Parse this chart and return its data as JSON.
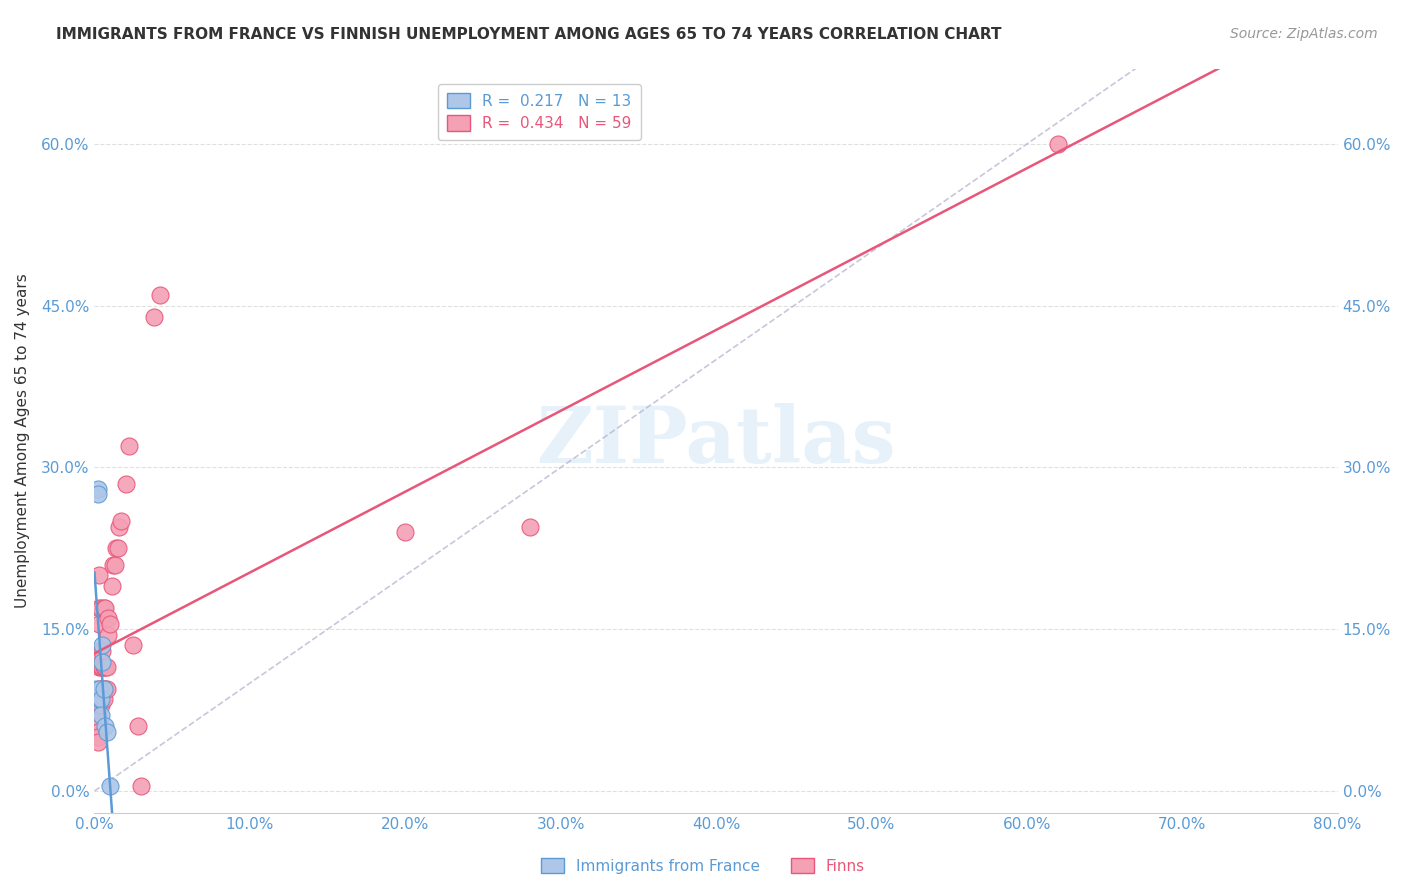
{
  "title": "IMMIGRANTS FROM FRANCE VS FINNISH UNEMPLOYMENT AMONG AGES 65 TO 74 YEARS CORRELATION CHART",
  "source": "Source: ZipAtlas.com",
  "ylabel": "Unemployment Among Ages 65 to 74 years",
  "xlim": [
    0.0,
    0.8
  ],
  "ylim": [
    -0.02,
    0.67
  ],
  "xticks": [
    0.0,
    0.1,
    0.2,
    0.3,
    0.4,
    0.5,
    0.6,
    0.7,
    0.8
  ],
  "yticks": [
    0.0,
    0.15,
    0.3,
    0.45,
    0.6
  ],
  "xtick_labels": [
    "0.0%",
    "10.0%",
    "20.0%",
    "30.0%",
    "40.0%",
    "50.0%",
    "60.0%",
    "70.0%",
    "80.0%"
  ],
  "ytick_labels": [
    "0.0%",
    "15.0%",
    "30.0%",
    "45.0%",
    "60.0%"
  ],
  "watermark": "ZIPatlas",
  "france_color": "#aec6e8",
  "finn_color": "#f4a0b5",
  "france_edge": "#5b9bd5",
  "finn_edge": "#e8567a",
  "trendline_france_color": "#5b9bd5",
  "trendline_finn_color": "#e8567a",
  "trendline_ref_color": "#b0b0cc",
  "france_x": [
    0.001,
    0.002,
    0.002,
    0.003,
    0.003,
    0.004,
    0.004,
    0.005,
    0.005,
    0.006,
    0.007,
    0.008,
    0.01
  ],
  "france_y": [
    0.095,
    0.28,
    0.275,
    0.085,
    0.095,
    0.085,
    0.07,
    0.12,
    0.135,
    0.095,
    0.06,
    0.055,
    0.005
  ],
  "finn_x": [
    0.001,
    0.001,
    0.001,
    0.001,
    0.001,
    0.002,
    0.002,
    0.002,
    0.002,
    0.002,
    0.002,
    0.002,
    0.002,
    0.003,
    0.003,
    0.003,
    0.003,
    0.003,
    0.003,
    0.003,
    0.003,
    0.004,
    0.004,
    0.004,
    0.004,
    0.004,
    0.005,
    0.005,
    0.005,
    0.005,
    0.006,
    0.006,
    0.006,
    0.006,
    0.007,
    0.007,
    0.007,
    0.008,
    0.008,
    0.009,
    0.009,
    0.01,
    0.011,
    0.012,
    0.013,
    0.014,
    0.015,
    0.016,
    0.017,
    0.02,
    0.022,
    0.025,
    0.028,
    0.03,
    0.038,
    0.042,
    0.2,
    0.28,
    0.62
  ],
  "finn_y": [
    0.08,
    0.075,
    0.07,
    0.065,
    0.06,
    0.08,
    0.075,
    0.07,
    0.065,
    0.06,
    0.055,
    0.05,
    0.045,
    0.08,
    0.085,
    0.095,
    0.115,
    0.13,
    0.155,
    0.17,
    0.2,
    0.08,
    0.085,
    0.095,
    0.115,
    0.17,
    0.085,
    0.095,
    0.115,
    0.13,
    0.085,
    0.095,
    0.115,
    0.17,
    0.095,
    0.115,
    0.17,
    0.095,
    0.115,
    0.145,
    0.16,
    0.155,
    0.19,
    0.21,
    0.21,
    0.225,
    0.225,
    0.245,
    0.25,
    0.285,
    0.32,
    0.135,
    0.06,
    0.005,
    0.44,
    0.46,
    0.24,
    0.245,
    0.6
  ],
  "background_color": "#ffffff",
  "grid_color": "#e0e0e0"
}
